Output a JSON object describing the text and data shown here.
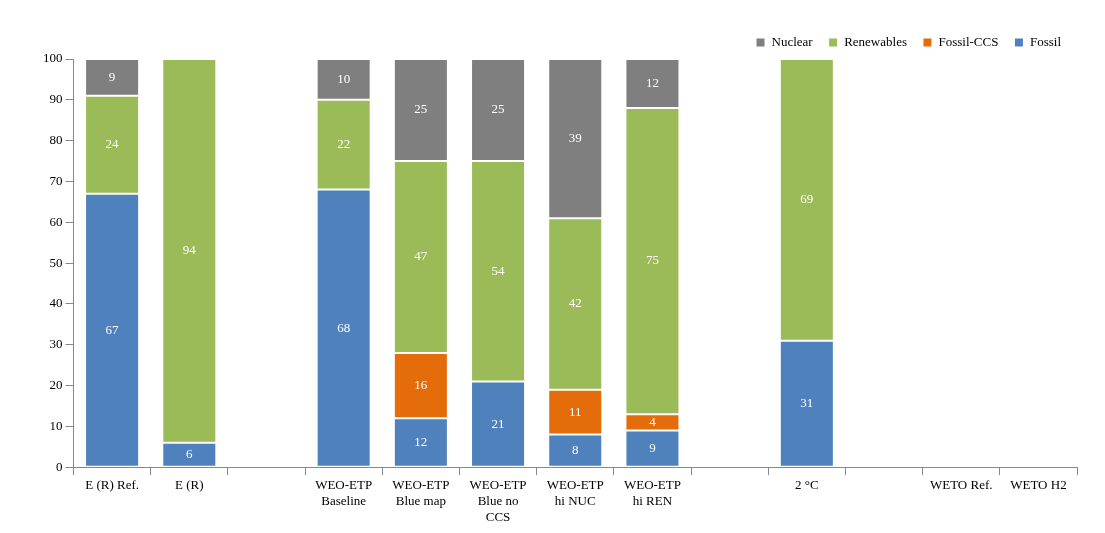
{
  "chart_data": {
    "type": "bar",
    "stacked": true,
    "categories": [
      "E (R) Ref.",
      "E (R)",
      null,
      "WEO-ETP Baseline",
      "WEO-ETP Blue map",
      "WEO-ETP Blue no CCS",
      "WEO-ETP hi NUC",
      "WEO-ETP hi REN",
      null,
      "2 °C",
      null,
      "WETO Ref.",
      "WETO H2"
    ],
    "series": [
      {
        "name": "Fossil",
        "color": "#4f81bd",
        "values": [
          67,
          6,
          null,
          68,
          12,
          21,
          8,
          9,
          null,
          31,
          null,
          0,
          0
        ],
        "value_labels": [
          "67",
          "6",
          null,
          "68",
          "12",
          "21",
          "8",
          "9",
          null,
          "31",
          null,
          null,
          null
        ]
      },
      {
        "name": "Fossil-CCS",
        "color": "#e46c0a",
        "values": [
          0,
          0,
          null,
          0,
          16,
          0,
          11,
          4,
          null,
          0,
          null,
          0,
          0
        ],
        "value_labels": [
          null,
          null,
          null,
          null,
          "16",
          null,
          "11",
          "4",
          null,
          null,
          null,
          null,
          null
        ]
      },
      {
        "name": "Renewables",
        "color": "#9bbb59",
        "values": [
          24,
          94,
          null,
          22,
          47,
          54,
          42,
          75,
          null,
          69,
          null,
          0,
          0
        ],
        "value_labels": [
          "24",
          "94",
          null,
          "22",
          "47",
          "54",
          "42",
          "75",
          null,
          "69",
          null,
          null,
          null
        ]
      },
      {
        "name": "Nuclear",
        "color": "#7f7f7f",
        "values": [
          9,
          0,
          null,
          10,
          25,
          25,
          39,
          12,
          null,
          0,
          null,
          0,
          0
        ],
        "value_labels": [
          "9",
          null,
          null,
          "10",
          "25",
          "25",
          "39",
          "12",
          null,
          null,
          null,
          null,
          null
        ]
      }
    ],
    "ylim": [
      0,
      100
    ],
    "yticks": [
      0,
      10,
      20,
      30,
      40,
      50,
      60,
      70,
      80,
      90,
      100
    ],
    "grid": false,
    "legend": "top right"
  }
}
